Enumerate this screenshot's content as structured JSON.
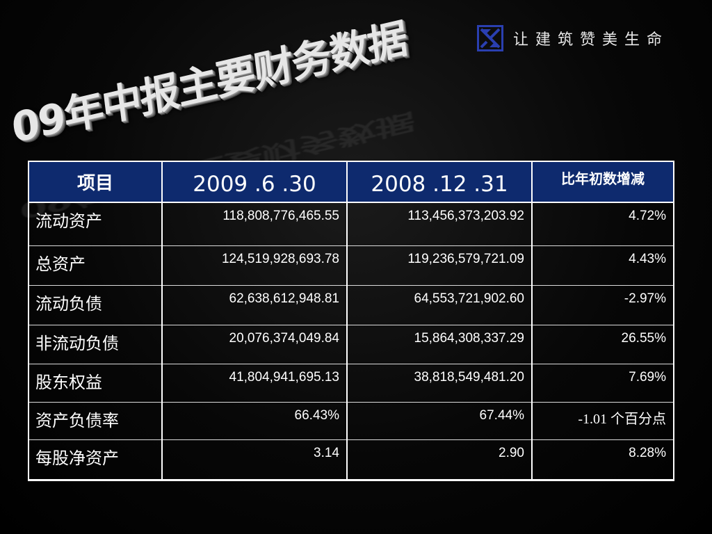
{
  "title": "09年中报主要财务数据",
  "logo": {
    "icon": "csc-logo-icon",
    "text": "让建筑赞美生命",
    "color": "#2a3fb0"
  },
  "table": {
    "header_color": "#0e2a6e",
    "headers": [
      "项目",
      "2009 .6 .30",
      "2008 .12 .31",
      "比年初数增减"
    ],
    "rows": [
      {
        "label": "流动资产",
        "v2009": "118,808,776,465.55",
        "v2008": "113,456,373,203.92",
        "change": "4.72%"
      },
      {
        "label": "总资产",
        "v2009": "124,519,928,693.78",
        "v2008": "119,236,579,721.09",
        "change": "4.43%"
      },
      {
        "label": "流动负债",
        "v2009": "62,638,612,948.81",
        "v2008": "64,553,721,902.60",
        "change": "-2.97%"
      },
      {
        "label": "非流动负债",
        "v2009": "20,076,374,049.84",
        "v2008": "15,864,308,337.29",
        "change": "26.55%"
      },
      {
        "label": "股东权益",
        "v2009": "41,804,941,695.13",
        "v2008": "38,818,549,481.20",
        "change": "7.69%"
      },
      {
        "label": "资产负债率",
        "v2009": "66.43%",
        "v2008": "67.44%",
        "change": "-1.01 个百分点"
      },
      {
        "label": "每股净资产",
        "v2009": "3.14",
        "v2008": "2.90",
        "change": "8.28%"
      }
    ]
  }
}
